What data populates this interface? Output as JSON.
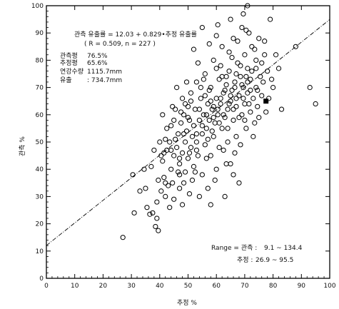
{
  "chart_data": {
    "type": "scatter",
    "xlabel": "추정 %",
    "ylabel": "관측 %",
    "xlim": [
      0,
      100
    ],
    "ylim": [
      0,
      100
    ],
    "x_ticks": [
      "0",
      "10",
      "20",
      "30",
      "40",
      "50",
      "60",
      "70",
      "80",
      "90",
      "100"
    ],
    "y_ticks": [
      "0",
      "10",
      "20",
      "30",
      "40",
      "50",
      "60",
      "70",
      "80",
      "90",
      "100"
    ],
    "grid": false,
    "regression": {
      "intercept": 12.03,
      "slope": 0.829,
      "x_range": [
        0,
        100
      ]
    },
    "annotations": {
      "equation": "관측 유출률 = 12.03 + 0.829•추정 유출률",
      "stats": "( R = 0.509, n = 227 )",
      "info": [
        {
          "label": "관측평",
          "value": "76.5%"
        },
        {
          "label": "추정평",
          "value": "65.6%"
        },
        {
          "label": "연강수량",
          "value": "1115.7mm"
        },
        {
          "label": "유출",
          "value": ": 734.7mm"
        }
      ],
      "range_label": "Range = 관측 :",
      "range_observed": "9.1 ~ 134.4",
      "range_estimated_label": "추정 :",
      "range_estimated": "26.9 ~ 95.5"
    },
    "marker_colors": {
      "point": "#000000",
      "line": "#000000"
    },
    "points": [
      [
        27.0,
        15.0
      ],
      [
        30.5,
        38.0
      ],
      [
        31.0,
        24.0
      ],
      [
        33.0,
        32.0
      ],
      [
        34.5,
        40.0
      ],
      [
        35.5,
        26.0
      ],
      [
        36.5,
        23.5
      ],
      [
        37.5,
        24.0
      ],
      [
        38.0,
        47.0
      ],
      [
        38.5,
        19.0
      ],
      [
        39.0,
        22.0
      ],
      [
        39.5,
        17.5
      ],
      [
        40.0,
        50.0
      ],
      [
        40.5,
        45.0
      ],
      [
        41.0,
        43.0
      ],
      [
        41.0,
        60.0
      ],
      [
        41.5,
        37.0
      ],
      [
        42.0,
        51.0
      ],
      [
        42.0,
        30.0
      ],
      [
        42.5,
        47.0
      ],
      [
        43.0,
        34.0
      ],
      [
        43.5,
        50.0
      ],
      [
        44.0,
        40.0
      ],
      [
        44.0,
        56.0
      ],
      [
        44.5,
        35.0
      ],
      [
        45.0,
        45.0
      ],
      [
        45.0,
        29.0
      ],
      [
        45.5,
        62.0
      ],
      [
        46.0,
        48.0
      ],
      [
        46.5,
        53.0
      ],
      [
        47.0,
        42.0
      ],
      [
        47.0,
        38.0
      ],
      [
        47.5,
        57.0
      ],
      [
        48.0,
        66.0
      ],
      [
        48.0,
        46.0
      ],
      [
        48.5,
        60.0
      ],
      [
        49.0,
        50.0
      ],
      [
        49.0,
        39.0
      ],
      [
        49.5,
        54.0
      ],
      [
        50.0,
        44.0
      ],
      [
        50.0,
        63.0
      ],
      [
        50.5,
        58.0
      ],
      [
        51.0,
        48.0
      ],
      [
        51.0,
        68.0
      ],
      [
        51.5,
        52.0
      ],
      [
        52.0,
        56.0
      ],
      [
        52.0,
        41.0
      ],
      [
        52.5,
        62.0
      ],
      [
        53.0,
        50.0
      ],
      [
        53.0,
        72.0
      ],
      [
        53.5,
        45.0
      ],
      [
        54.0,
        58.0
      ],
      [
        54.0,
        30.0
      ],
      [
        54.5,
        66.0
      ],
      [
        55.0,
        53.0
      ],
      [
        55.0,
        38.0
      ],
      [
        55.5,
        60.0
      ],
      [
        56.0,
        49.0
      ],
      [
        56.0,
        75.0
      ],
      [
        56.5,
        55.0
      ],
      [
        57.0,
        64.0
      ],
      [
        57.0,
        33.0
      ],
      [
        57.5,
        58.0
      ],
      [
        58.0,
        70.0
      ],
      [
        58.0,
        45.0
      ],
      [
        58.5,
        62.0
      ],
      [
        59.0,
        52.0
      ],
      [
        59.0,
        80.0
      ],
      [
        59.5,
        57.0
      ],
      [
        60.0,
        66.0
      ],
      [
        60.0,
        40.0
      ],
      [
        60.5,
        60.0
      ],
      [
        61.0,
        73.0
      ],
      [
        61.0,
        48.0
      ],
      [
        61.5,
        64.0
      ],
      [
        62.0,
        55.0
      ],
      [
        62.0,
        85.0
      ],
      [
        62.5,
        68.0
      ],
      [
        63.0,
        59.0
      ],
      [
        63.0,
        30.0
      ],
      [
        63.5,
        71.0
      ],
      [
        64.0,
        62.0
      ],
      [
        64.0,
        50.0
      ],
      [
        64.5,
        76.0
      ],
      [
        65.0,
        65.0
      ],
      [
        65.0,
        42.0
      ],
      [
        65.5,
        69.0
      ],
      [
        66.0,
        58.0
      ],
      [
        66.0,
        88.0
      ],
      [
        66.5,
        72.0
      ],
      [
        67.0,
        63.0
      ],
      [
        67.0,
        52.0
      ],
      [
        67.5,
        79.0
      ],
      [
        68.0,
        67.0
      ],
      [
        68.0,
        35.0
      ],
      [
        68.5,
        74.0
      ],
      [
        69.0,
        60.0
      ],
      [
        69.0,
        92.0
      ],
      [
        69.5,
        70.0
      ],
      [
        70.0,
        64.0
      ],
      [
        70.0,
        82.0
      ],
      [
        70.5,
        55.0
      ],
      [
        71.0,
        77.0
      ],
      [
        71.0,
        68.0
      ],
      [
        71.5,
        90.0
      ],
      [
        72.0,
        61.0
      ],
      [
        72.0,
        73.0
      ],
      [
        72.5,
        85.0
      ],
      [
        73.0,
        66.0
      ],
      [
        73.5,
        57.0
      ],
      [
        74.0,
        80.0
      ],
      [
        74.0,
        70.0
      ],
      [
        74.5,
        63.0
      ],
      [
        75.0,
        88.0
      ],
      [
        75.5,
        74.0
      ],
      [
        76.0,
        67.0
      ],
      [
        77.0,
        82.0
      ],
      [
        77.5,
        61.0
      ],
      [
        78.0,
        76.0
      ],
      [
        79.0,
        95.0
      ],
      [
        80.0,
        70.0
      ],
      [
        81.0,
        82.0
      ],
      [
        83.0,
        62.0
      ],
      [
        88.0,
        85.0
      ],
      [
        93.0,
        70.0
      ],
      [
        95.0,
        64.0
      ],
      [
        46.0,
        70.0
      ],
      [
        47.0,
        33.0
      ],
      [
        52.0,
        84.0
      ],
      [
        55.0,
        92.0
      ],
      [
        58.0,
        27.0
      ],
      [
        60.0,
        89.0
      ],
      [
        61.5,
        78.0
      ],
      [
        63.5,
        42.0
      ],
      [
        65.0,
        95.0
      ],
      [
        66.5,
        46.0
      ],
      [
        69.5,
        97.0
      ],
      [
        71.0,
        100.0
      ],
      [
        43.5,
        26.0
      ],
      [
        44.5,
        63.0
      ],
      [
        48.5,
        35.0
      ],
      [
        49.5,
        72.0
      ],
      [
        50.5,
        31.0
      ],
      [
        53.5,
        79.0
      ],
      [
        56.5,
        44.0
      ],
      [
        57.5,
        86.0
      ],
      [
        59.5,
        36.0
      ],
      [
        60.5,
        93.0
      ],
      [
        62.5,
        47.0
      ],
      [
        64.5,
        83.0
      ],
      [
        66.0,
        38.0
      ],
      [
        67.5,
        87.0
      ],
      [
        68.5,
        49.0
      ],
      [
        70.5,
        91.0
      ],
      [
        73.0,
        52.0
      ],
      [
        75.0,
        59.0
      ],
      [
        76.5,
        72.0
      ],
      [
        78.5,
        66.0
      ],
      [
        40.5,
        32.0
      ],
      [
        42.5,
        55.0
      ],
      [
        45.5,
        51.0
      ],
      [
        47.5,
        61.0
      ],
      [
        51.5,
        36.0
      ],
      [
        54.5,
        70.0
      ],
      [
        58.5,
        54.0
      ],
      [
        62.0,
        74.0
      ],
      [
        66.0,
        62.0
      ],
      [
        69.0,
        71.0
      ],
      [
        72.5,
        76.0
      ],
      [
        74.5,
        69.0
      ],
      [
        37.0,
        41.0
      ],
      [
        39.0,
        28.0
      ],
      [
        41.5,
        46.0
      ],
      [
        46.5,
        39.0
      ],
      [
        50.0,
        59.0
      ],
      [
        53.0,
        47.0
      ],
      [
        56.0,
        67.0
      ],
      [
        59.0,
        63.0
      ],
      [
        63.0,
        69.0
      ],
      [
        67.0,
        75.0
      ],
      [
        71.5,
        64.0
      ],
      [
        76.0,
        79.0
      ],
      [
        79.5,
        73.0
      ],
      [
        82.0,
        77.0
      ],
      [
        35.0,
        33.0
      ],
      [
        48.0,
        27.0
      ],
      [
        52.5,
        39.0
      ],
      [
        57.0,
        51.0
      ],
      [
        61.0,
        57.0
      ],
      [
        64.0,
        55.0
      ],
      [
        68.0,
        59.0
      ],
      [
        70.0,
        58.0
      ],
      [
        73.5,
        84.0
      ],
      [
        77.0,
        87.0
      ],
      [
        44.0,
        47.0
      ],
      [
        49.0,
        64.0
      ],
      [
        55.5,
        73.0
      ],
      [
        60.0,
        77.0
      ],
      [
        65.5,
        81.0
      ],
      [
        69.5,
        66.0
      ],
      [
        54.0,
        62.0
      ],
      [
        58.0,
        65.0
      ],
      [
        62.5,
        60.0
      ],
      [
        67.0,
        66.0
      ],
      [
        71.0,
        72.0
      ],
      [
        45.0,
        58.0
      ],
      [
        51.0,
        65.0
      ],
      [
        57.5,
        69.0
      ],
      [
        63.5,
        74.0
      ],
      [
        68.5,
        78.0
      ],
      [
        42.0,
        35.0
      ],
      [
        47.0,
        44.0
      ],
      [
        53.0,
        53.0
      ],
      [
        59.0,
        59.0
      ],
      [
        65.0,
        67.0
      ],
      [
        72.0,
        69.0
      ],
      [
        39.5,
        36.0
      ],
      [
        50.5,
        46.0
      ],
      [
        56.5,
        60.0
      ],
      [
        61.5,
        66.0
      ],
      [
        66.5,
        70.0
      ],
      [
        70.5,
        74.0
      ],
      [
        74.0,
        77.0
      ],
      [
        55.0,
        56.0
      ],
      [
        60.5,
        62.0
      ],
      [
        64.5,
        64.0
      ],
      [
        48.5,
        53.0
      ]
    ],
    "filled_points": [
      [
        77.5,
        65.0
      ]
    ]
  }
}
